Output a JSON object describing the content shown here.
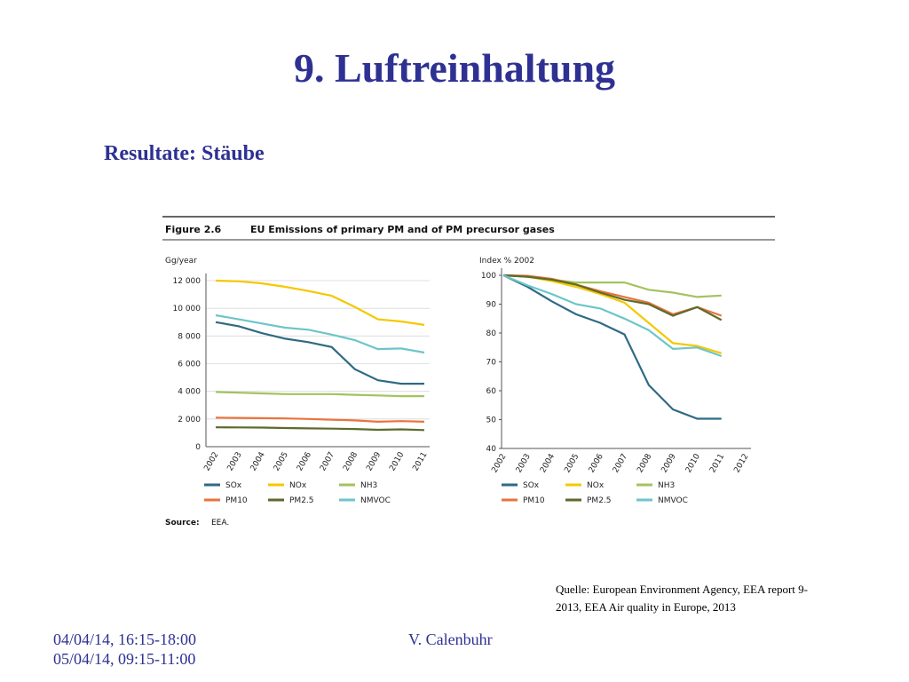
{
  "slide": {
    "title": "9. Luftreinhaltung",
    "subtitle": "Resultate: Stäube",
    "figure_label": "Figure 2.6",
    "figure_title": "EU Emissions of primary PM and of PM precursor gases",
    "source_label": "Source:",
    "source": "EEA.",
    "quote": [
      "Quelle: European Environment Agency, EEA  report 9-",
      "2013, EEA Air quality in Europe, 2013"
    ],
    "dates": [
      "04/04/14, 16:15-18:00",
      "05/04/14, 09:15-11:00"
    ],
    "author": "V. Calenbuhr"
  },
  "chart_data": [
    {
      "type": "line",
      "y_label": "Gg/year",
      "categories": [
        "2002",
        "2003",
        "2004",
        "2005",
        "2006",
        "2007",
        "2008",
        "2009",
        "2010",
        "2011"
      ],
      "ylim": [
        0,
        12000
      ],
      "yticks": [
        {
          "value": 0,
          "label": "0"
        },
        {
          "value": 2000,
          "label": "2 000"
        },
        {
          "value": 4000,
          "label": "4 000"
        },
        {
          "value": 6000,
          "label": "6 000"
        },
        {
          "value": 8000,
          "label": "8 000"
        },
        {
          "value": 10000,
          "label": "10 000"
        },
        {
          "value": 12000,
          "label": "12 000"
        }
      ],
      "grid": true,
      "series": [
        {
          "name": "SOx",
          "color": "#2f6a85",
          "values": [
            9000,
            8700,
            8200,
            7800,
            7550,
            7200,
            5600,
            4800,
            4550,
            4550
          ]
        },
        {
          "name": "NOx",
          "color": "#f5c800",
          "values": [
            12000,
            11950,
            11800,
            11550,
            11250,
            10900,
            10100,
            9200,
            9050,
            8800
          ]
        },
        {
          "name": "NH3",
          "color": "#a3c35e",
          "values": [
            3950,
            3900,
            3850,
            3800,
            3800,
            3800,
            3750,
            3700,
            3650,
            3650
          ]
        },
        {
          "name": "PM10",
          "color": "#e8743b",
          "values": [
            2100,
            2080,
            2060,
            2040,
            2000,
            1950,
            1900,
            1800,
            1850,
            1800
          ]
        },
        {
          "name": "PM2.5",
          "color": "#5b6b2b",
          "values": [
            1400,
            1390,
            1380,
            1350,
            1320,
            1300,
            1280,
            1220,
            1250,
            1200
          ]
        },
        {
          "name": "NMVOC",
          "color": "#6cc5c9",
          "values": [
            9500,
            9200,
            8900,
            8600,
            8450,
            8100,
            7700,
            7050,
            7100,
            6800
          ]
        }
      ]
    },
    {
      "type": "line",
      "y_label": "Index % 2002",
      "categories": [
        "2002",
        "2003",
        "2004",
        "2005",
        "2006",
        "2007",
        "2008",
        "2009",
        "2010",
        "2011",
        "2012"
      ],
      "ylim": [
        40,
        100
      ],
      "yticks": [
        40,
        50,
        60,
        70,
        80,
        90,
        100
      ],
      "grid": false,
      "series": [
        {
          "name": "SOx",
          "color": "#2f6a85",
          "values": [
            100,
            96,
            91,
            86.5,
            83.5,
            79.5,
            62,
            53.5,
            50.3,
            50.3,
            null
          ]
        },
        {
          "name": "NOx",
          "color": "#f5c800",
          "values": [
            100,
            99.5,
            98,
            96,
            93.5,
            90.5,
            83.5,
            76.5,
            75.5,
            73,
            null
          ]
        },
        {
          "name": "NH3",
          "color": "#a3c35e",
          "values": [
            100,
            99.5,
            98.5,
            97.5,
            97.5,
            97.5,
            95,
            94,
            92.5,
            93,
            null
          ]
        },
        {
          "name": "PM10",
          "color": "#e8743b",
          "values": [
            100,
            99.8,
            98.8,
            96.8,
            94.5,
            92.5,
            90.5,
            86.5,
            89,
            86,
            null
          ]
        },
        {
          "name": "PM2.5",
          "color": "#5b6b2b",
          "values": [
            100,
            99.5,
            98.5,
            96.8,
            94,
            91.5,
            90,
            86,
            89,
            84.5,
            null
          ]
        },
        {
          "name": "NMVOC",
          "color": "#6cc5c9",
          "values": [
            100,
            96.5,
            93.5,
            90,
            88.5,
            85,
            81,
            74.5,
            75,
            72,
            null
          ]
        }
      ]
    }
  ]
}
